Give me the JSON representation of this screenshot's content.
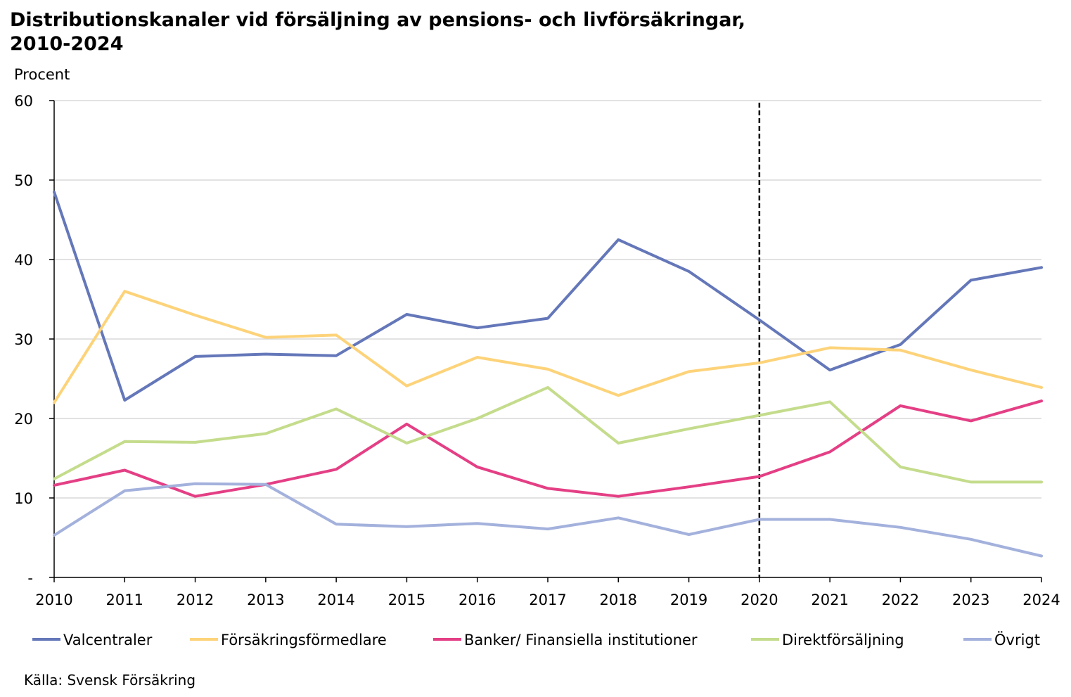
{
  "title_line1": "Distributionskanaler vid försäljning av pensions- och livförsäkringar,",
  "title_line2": "2010-2024",
  "source": "Källa: Svensk Försäkring",
  "chart_data": {
    "type": "line",
    "ylabel": "Procent",
    "ylim": [
      0,
      60
    ],
    "yticks": [
      "-",
      "10",
      "20",
      "30",
      "40",
      "50",
      "60"
    ],
    "x": [
      2010,
      2011,
      2012,
      2013,
      2014,
      2015,
      2016,
      2017,
      2018,
      2019,
      2020,
      2021,
      2022,
      2023,
      2024
    ],
    "xtick_labels": [
      "2010",
      "2011",
      "2012",
      "2013",
      "2014",
      "2015",
      "2016",
      "2017",
      "2018",
      "2019",
      "2020",
      "2021",
      "2022",
      "2023",
      "2024"
    ],
    "grid": "horizontal",
    "legend": "bottom",
    "reference_line": {
      "x": 2020,
      "style": "dashed",
      "color": "#000000"
    },
    "series": [
      {
        "name": "Valcentraler",
        "color": "#6477b9",
        "values": [
          48.5,
          22.3,
          27.8,
          28.1,
          27.9,
          33.1,
          31.4,
          32.6,
          42.5,
          38.5,
          32.4,
          26.1,
          29.3,
          37.4,
          39.0
        ]
      },
      {
        "name": "Försäkringsförmedlare",
        "color": "#fdd37a",
        "values": [
          22.0,
          36.0,
          33.0,
          30.2,
          30.5,
          24.1,
          27.7,
          26.2,
          22.9,
          25.9,
          27.0,
          28.9,
          28.6,
          26.1,
          23.9
        ]
      },
      {
        "name": "Banker/ Finansiella institutioner",
        "color": "#e43f85",
        "values": [
          11.6,
          13.5,
          10.2,
          11.7,
          13.6,
          19.3,
          13.9,
          11.2,
          10.2,
          11.4,
          12.7,
          15.8,
          21.6,
          19.7,
          22.2
        ]
      },
      {
        "name": "Direktförsäljning",
        "color": "#c4dc8c",
        "values": [
          12.4,
          17.1,
          17.0,
          18.1,
          21.2,
          16.9,
          20.0,
          23.9,
          16.9,
          18.7,
          20.4,
          22.1,
          13.9,
          12.0,
          12.0
        ]
      },
      {
        "name": "Övrigt",
        "color": "#a3b1dc",
        "values": [
          5.3,
          10.9,
          11.8,
          11.7,
          6.7,
          6.4,
          6.8,
          6.1,
          7.5,
          5.4,
          7.3,
          7.3,
          6.3,
          4.8,
          2.7
        ]
      }
    ]
  }
}
